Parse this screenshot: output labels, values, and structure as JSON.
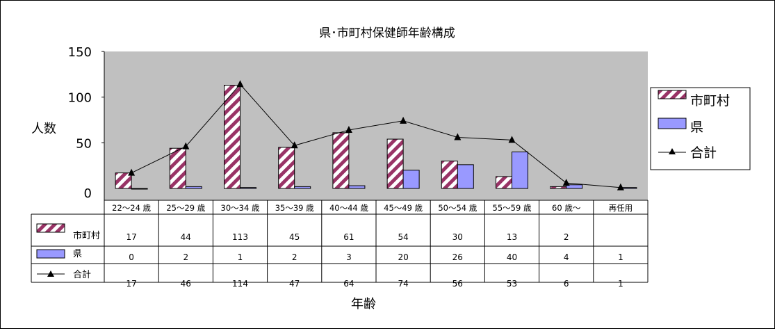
{
  "chart_data": {
    "type": "bar",
    "title": "県･市町村保健師年齢構成",
    "xlabel": "年齢",
    "ylabel": "人数",
    "ylim": [
      0,
      150
    ],
    "yticks": [
      "0",
      "50",
      "100",
      "150"
    ],
    "categories": [
      "22～24 歳",
      "25～29 歳",
      "30～34 歳",
      "35～39 歳",
      "40～44 歳",
      "45～49 歳",
      "50～54 歳",
      "55～59 歳",
      "60 歳～",
      "再任用"
    ],
    "series": [
      {
        "name": "市町村",
        "kind": "bar",
        "pattern": "hatched",
        "color": "#993366",
        "values": [
          17,
          44,
          113,
          45,
          61,
          54,
          30,
          13,
          2,
          null
        ],
        "labels": [
          "17",
          "44",
          "113",
          "45",
          "61",
          "54",
          "30",
          "13",
          "2",
          ""
        ]
      },
      {
        "name": "県",
        "kind": "bar",
        "color": "#9999ff",
        "values": [
          0,
          2,
          1,
          2,
          3,
          20,
          26,
          40,
          4,
          1
        ],
        "labels": [
          "0",
          "2",
          "1",
          "2",
          "3",
          "20",
          "26",
          "40",
          "4",
          "1"
        ]
      },
      {
        "name": "合計",
        "kind": "line",
        "marker": "triangle",
        "color": "#000000",
        "values": [
          17,
          46,
          114,
          47,
          64,
          74,
          56,
          53,
          6,
          1
        ],
        "labels": [
          "17",
          "46",
          "114",
          "47",
          "64",
          "74",
          "56",
          "53",
          "6",
          "1"
        ]
      }
    ],
    "plot_background": "#c0c0c0",
    "grid": false,
    "legend_position": "right",
    "data_table": true
  }
}
